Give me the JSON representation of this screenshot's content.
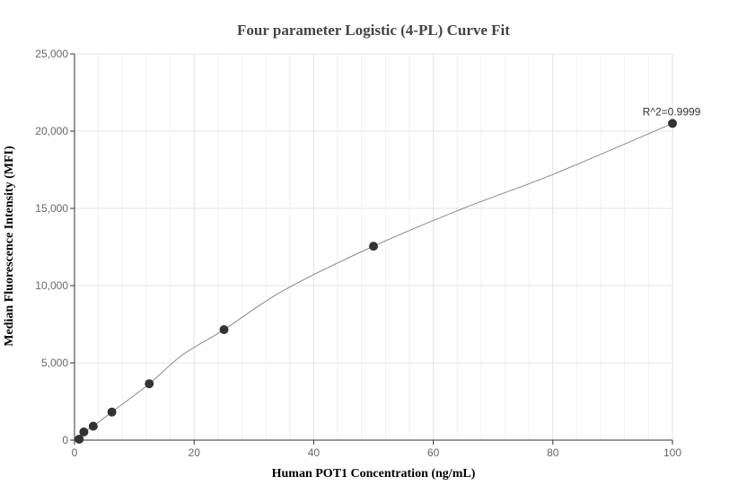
{
  "chart_data": {
    "type": "scatter",
    "title": "Four parameter Logistic (4-PL) Curve Fit",
    "xlabel": "Human POT1 Concentration (ng/mL)",
    "ylabel": "Median Fluorescence Intensity (MFI)",
    "xlim": [
      0,
      100
    ],
    "ylim": [
      0,
      25000
    ],
    "x_ticks": [
      0,
      20,
      40,
      60,
      80,
      100
    ],
    "y_ticks": [
      0,
      5000,
      10000,
      15000,
      20000,
      25000
    ],
    "x_tick_labels": [
      "0",
      "20",
      "40",
      "60",
      "80",
      "100"
    ],
    "y_tick_labels": [
      "0",
      "5,000",
      "10,000",
      "15,000",
      "20,000",
      "25,000"
    ],
    "grid": true,
    "series": [
      {
        "x": [
          0.78,
          1.56,
          3.13,
          6.25,
          12.5,
          25,
          50,
          100
        ],
        "y": [
          60,
          530,
          900,
          1820,
          3650,
          7150,
          12550,
          20500
        ],
        "color": "#333333"
      }
    ],
    "fit_curve": {
      "x": [
        0.78,
        1.56,
        3.13,
        6.25,
        12.5,
        18,
        25,
        35,
        50,
        65,
        80,
        100
      ],
      "y": [
        60,
        530,
        900,
        1820,
        3650,
        5500,
        7150,
        9700,
        12550,
        15000,
        17200,
        20500
      ],
      "color": "#888888"
    },
    "annotation": {
      "text": "R^2=0.9999",
      "x": 100,
      "y": 20500
    }
  }
}
